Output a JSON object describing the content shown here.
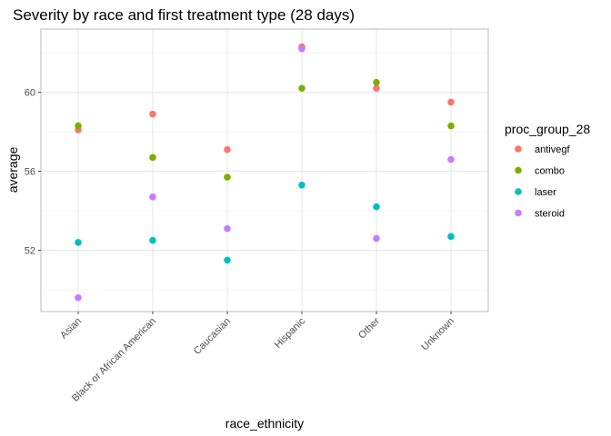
{
  "chart_data": {
    "type": "scatter",
    "title": "Severity by race and first treatment type (28 days)",
    "xlabel": "race_ethnicity",
    "ylabel": "average",
    "categories": [
      "Asian",
      "Black or African American",
      "Caucasian",
      "Hispanic",
      "Other",
      "Unknown"
    ],
    "y_ticks": [
      52,
      56,
      60
    ],
    "y_tick_labels": [
      "52",
      "56",
      "60"
    ],
    "ylim": [
      48.9,
      63.2
    ],
    "grid": true,
    "legend": {
      "title": "proc_group_28",
      "position": "right"
    },
    "series": [
      {
        "name": "antivegf",
        "color": "#F8766D",
        "values": [
          58.1,
          58.9,
          57.1,
          62.3,
          60.2,
          59.5
        ]
      },
      {
        "name": "combo",
        "color": "#7CAE00",
        "values": [
          58.3,
          56.7,
          55.7,
          60.2,
          60.5,
          58.3
        ]
      },
      {
        "name": "laser",
        "color": "#00BFC4",
        "values": [
          52.4,
          52.5,
          51.5,
          55.3,
          54.2,
          52.7
        ]
      },
      {
        "name": "steroid",
        "color": "#C77CFF",
        "values": [
          49.6,
          54.7,
          53.1,
          62.2,
          52.6,
          56.6
        ]
      }
    ]
  }
}
